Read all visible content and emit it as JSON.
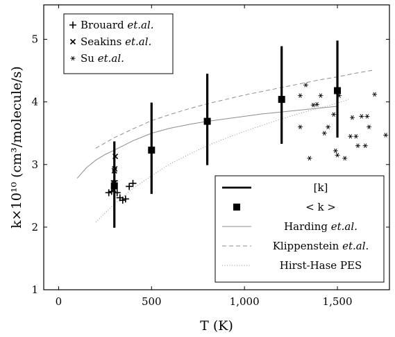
{
  "chart_data": {
    "type": "scatter",
    "xlabel": "T (K)",
    "ylabel": "k×10¹⁰ (cm³/molecule/s)",
    "xlim": [
      -80,
      1780
    ],
    "ylim": [
      1,
      5.55
    ],
    "x_ticks": [
      0,
      500,
      1000,
      1500
    ],
    "x_tick_labels": [
      "0",
      "500",
      "1,000",
      "1,500"
    ],
    "y_ticks": [
      1,
      2,
      3,
      4,
      5
    ],
    "y_tick_labels": [
      "1",
      "2",
      "3",
      "4",
      "5"
    ],
    "legend_experiments": {
      "placement": "top-left",
      "entries": [
        {
          "marker": "+",
          "name": "Brouard",
          "suffix": "et.al."
        },
        {
          "marker": "×",
          "name": "Seakins",
          "suffix": "et.al."
        },
        {
          "marker": "*",
          "name": "Su",
          "suffix": "et.al."
        }
      ]
    },
    "legend_theory": {
      "placement": "bottom-right",
      "entries": [
        {
          "style": "thick-line",
          "name": "[k]",
          "suffix": ""
        },
        {
          "style": "square",
          "name": "< k >",
          "suffix": ""
        },
        {
          "style": "solid-gray",
          "name": "Harding",
          "suffix": "et.al."
        },
        {
          "style": "dashed-gray",
          "name": "Klippenstein",
          "suffix": "et.al."
        },
        {
          "style": "dotted-gray",
          "name": "Hirst-Hase PES",
          "suffix": ""
        }
      ]
    },
    "series": [
      {
        "name": "Harding et.al.",
        "kind": "line",
        "color": "#8c8c8c",
        "x": [
          100,
          150,
          200,
          250,
          300,
          400,
          500,
          600,
          700,
          800,
          900,
          1000,
          1100,
          1200,
          1300,
          1400,
          1500
        ],
        "y": [
          2.78,
          2.95,
          3.07,
          3.16,
          3.23,
          3.38,
          3.5,
          3.58,
          3.64,
          3.69,
          3.73,
          3.77,
          3.81,
          3.84,
          3.87,
          3.9,
          3.93
        ]
      },
      {
        "name": "Klippenstein et.al.",
        "kind": "dashed",
        "color": "#8c8c8c",
        "x": [
          200,
          300,
          400,
          500,
          600,
          700,
          800,
          900,
          1000,
          1100,
          1200,
          1300,
          1400,
          1500,
          1600,
          1700
        ],
        "y": [
          3.26,
          3.43,
          3.57,
          3.7,
          3.8,
          3.89,
          3.97,
          4.04,
          4.11,
          4.17,
          4.23,
          4.29,
          4.35,
          4.4,
          4.46,
          4.51
        ]
      },
      {
        "name": "Hirst-Hase PES",
        "kind": "dotted",
        "color": "#8c8c8c",
        "x": [
          200,
          300,
          400,
          500,
          600,
          700,
          800,
          900,
          1000,
          1100,
          1200,
          1300,
          1400,
          1500,
          1560
        ],
        "y": [
          2.08,
          2.37,
          2.62,
          2.82,
          3.01,
          3.16,
          3.3,
          3.42,
          3.53,
          3.63,
          3.73,
          3.82,
          3.9,
          3.98,
          4.04
        ]
      },
      {
        "name": "[k]",
        "kind": "errorbar",
        "x": [
          300,
          500,
          800,
          1200,
          1500
        ],
        "low": [
          1.99,
          2.53,
          2.99,
          3.33,
          3.43
        ],
        "high": [
          3.37,
          3.99,
          4.45,
          4.89,
          4.98
        ]
      },
      {
        "name": "< k >",
        "kind": "square",
        "x": [
          300,
          500,
          800,
          1200,
          1500
        ],
        "y": [
          2.66,
          3.23,
          3.69,
          4.04,
          4.18
        ]
      },
      {
        "name": "Brouard et.al.",
        "kind": "plus",
        "x": [
          270,
          285,
          300,
          315,
          330,
          345,
          360,
          380,
          400
        ],
        "y": [
          2.55,
          2.57,
          2.74,
          2.55,
          2.47,
          2.43,
          2.45,
          2.65,
          2.7
        ]
      },
      {
        "name": "Seakins et.al.",
        "kind": "cross",
        "x": [
          295,
          298,
          300,
          302,
          305
        ],
        "y": [
          2.6,
          2.7,
          2.9,
          2.93,
          3.13
        ]
      },
      {
        "name": "Su et.al.",
        "kind": "star",
        "x": [
          1300,
          1330,
          1370,
          1390,
          1410,
          1430,
          1450,
          1480,
          1500,
          1510,
          1540,
          1570,
          1580,
          1600,
          1610,
          1630,
          1650,
          1660,
          1670,
          1700,
          1760,
          1300,
          1350,
          1490
        ],
        "y": [
          4.1,
          4.27,
          3.95,
          3.96,
          4.1,
          3.5,
          3.6,
          3.8,
          3.15,
          4.1,
          3.1,
          3.45,
          3.75,
          3.45,
          3.3,
          3.77,
          3.3,
          3.77,
          3.6,
          4.12,
          3.47,
          3.6,
          3.1,
          3.22
        ]
      }
    ]
  }
}
